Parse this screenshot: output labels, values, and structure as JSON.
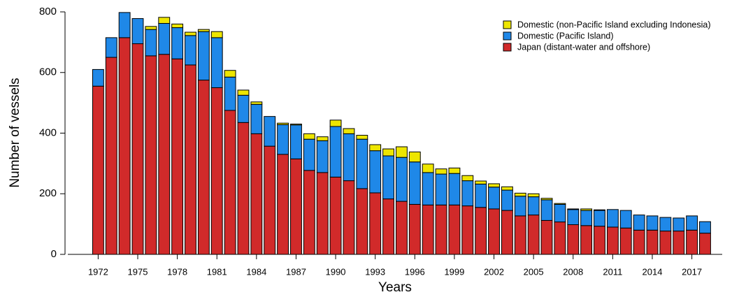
{
  "chart_data": {
    "type": "stacked-bar",
    "x_label": "Years",
    "y_label": "Number of vessels",
    "x": [
      1972,
      1973,
      1974,
      1975,
      1976,
      1977,
      1978,
      1979,
      1980,
      1981,
      1982,
      1983,
      1984,
      1985,
      1986,
      1987,
      1988,
      1989,
      1990,
      1991,
      1992,
      1993,
      1994,
      1995,
      1996,
      1997,
      1998,
      1999,
      2000,
      2001,
      2002,
      2003,
      2004,
      2005,
      2006,
      2007,
      2008,
      2009,
      2010,
      2011,
      2012,
      2013,
      2014,
      2015,
      2016,
      2017,
      2018
    ],
    "series": [
      {
        "name": "Japan (distant-water and offshore)",
        "color": "#d12a2a",
        "values": [
          555,
          650,
          715,
          695,
          655,
          660,
          645,
          625,
          575,
          550,
          475,
          435,
          398,
          357,
          330,
          315,
          277,
          270,
          255,
          243,
          217,
          203,
          183,
          175,
          165,
          163,
          163,
          163,
          160,
          155,
          150,
          145,
          127,
          130,
          112,
          107,
          98,
          95,
          93,
          90,
          87,
          80,
          80,
          77,
          77,
          80,
          70
        ]
      },
      {
        "name": "Domestic (Pacific Island)",
        "color": "#1f88e8",
        "values": [
          55,
          65,
          83,
          83,
          87,
          102,
          103,
          97,
          160,
          165,
          110,
          90,
          97,
          98,
          98,
          112,
          103,
          105,
          167,
          155,
          163,
          139,
          142,
          145,
          140,
          107,
          102,
          104,
          83,
          77,
          72,
          67,
          65,
          60,
          68,
          58,
          50,
          50,
          52,
          58,
          58,
          50,
          47,
          45,
          43,
          47,
          38
        ]
      },
      {
        "name": "Domestic (non-Pacific Island excluding Indonesia)",
        "color": "#eee600",
        "values": [
          0,
          0,
          0,
          0,
          10,
          20,
          12,
          11,
          7,
          20,
          22,
          17,
          8,
          0,
          5,
          3,
          18,
          13,
          21,
          17,
          13,
          20,
          23,
          35,
          33,
          28,
          17,
          18,
          17,
          10,
          11,
          11,
          10,
          10,
          5,
          3,
          2,
          5,
          2,
          0,
          0,
          0,
          0,
          0,
          0,
          0,
          0
        ]
      }
    ],
    "xlim": [
      1969.7,
      2019.3
    ],
    "xticks": [
      1972,
      1975,
      1978,
      1981,
      1984,
      1987,
      1990,
      1993,
      1996,
      1999,
      2002,
      2005,
      2008,
      2011,
      2014,
      2017
    ],
    "ylim": [
      0,
      800
    ],
    "yticks": [
      0,
      200,
      400,
      600,
      800
    ],
    "legend": "top-right"
  }
}
